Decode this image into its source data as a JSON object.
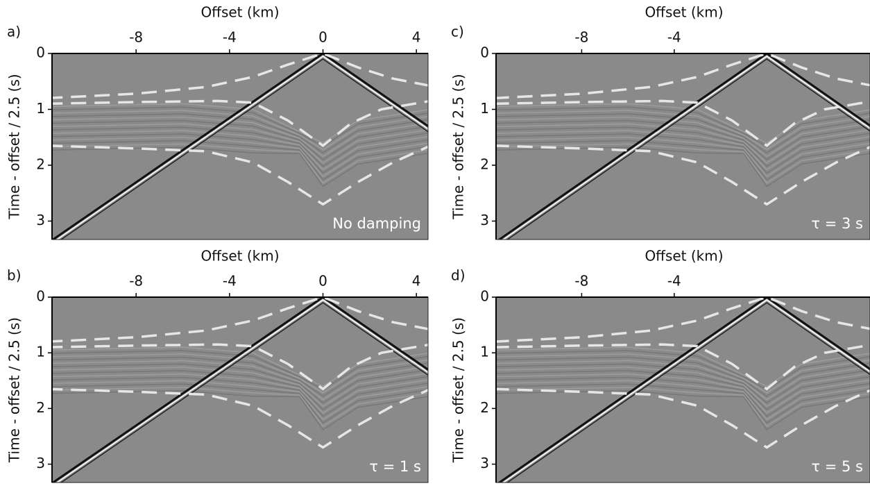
{
  "chart_data": [
    {
      "type": "seismic",
      "panel_label": "a)",
      "xlabel": "Offset (km)",
      "ylabel": "Time - offset / 2.5 (s)",
      "annotation": "No damping",
      "xlim": [
        -11.6,
        4.5
      ],
      "ylim": [
        0,
        3.33
      ],
      "xticks": [
        -8,
        -4,
        0,
        4
      ],
      "yticks": [
        0,
        1,
        2,
        3
      ]
    },
    {
      "type": "seismic",
      "panel_label": "b)",
      "xlabel": "Offset (km)",
      "ylabel": "Time - offset / 2.5 (s)",
      "annotation": "τ = 1 s",
      "xlim": [
        -11.6,
        4.5
      ],
      "ylim": [
        0,
        3.33
      ],
      "xticks": [
        -8,
        -4,
        0,
        4
      ],
      "yticks": [
        0,
        1,
        2,
        3
      ]
    },
    {
      "type": "seismic",
      "panel_label": "c)",
      "xlabel": "Offset (km)",
      "ylabel": "Time - offset / 2.5 (s)",
      "annotation": "τ = 3 s",
      "xlim": [
        -11.7,
        4.46
      ],
      "ylim": [
        0,
        3.33
      ],
      "xticks": [
        -8,
        -4
      ],
      "yticks": [
        0,
        1,
        2,
        3
      ]
    },
    {
      "type": "seismic",
      "panel_label": "d)",
      "xlabel": "Offset (km)",
      "ylabel": "Time - offset / 2.5 (s)",
      "annotation": "τ = 5 s",
      "xlim": [
        -11.7,
        4.46
      ],
      "ylim": [
        0,
        3.33
      ],
      "xticks": [
        -8,
        -4
      ],
      "yticks": [
        0,
        1,
        2,
        3
      ]
    }
  ]
}
